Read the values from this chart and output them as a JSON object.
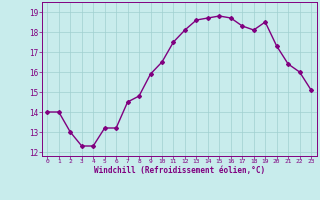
{
  "x": [
    0,
    1,
    2,
    3,
    4,
    5,
    6,
    7,
    8,
    9,
    10,
    11,
    12,
    13,
    14,
    15,
    16,
    17,
    18,
    19,
    20,
    21,
    22,
    23
  ],
  "y": [
    14.0,
    14.0,
    13.0,
    12.3,
    12.3,
    13.2,
    13.2,
    14.5,
    14.8,
    15.9,
    16.5,
    17.5,
    18.1,
    18.6,
    18.7,
    18.8,
    18.7,
    18.3,
    18.1,
    18.5,
    17.3,
    16.4,
    16.0,
    15.1
  ],
  "line_color": "#800080",
  "marker": "D",
  "marker_size": 2.0,
  "line_width": 1.0,
  "bg_color": "#c8ecec",
  "grid_color": "#a0d0d0",
  "xlabel": "Windchill (Refroidissement éolien,°C)",
  "xlabel_color": "#800080",
  "tick_color": "#800080",
  "ylim": [
    11.8,
    19.5
  ],
  "xlim": [
    -0.5,
    23.5
  ],
  "yticks": [
    12,
    13,
    14,
    15,
    16,
    17,
    18,
    19
  ],
  "xticks": [
    0,
    1,
    2,
    3,
    4,
    5,
    6,
    7,
    8,
    9,
    10,
    11,
    12,
    13,
    14,
    15,
    16,
    17,
    18,
    19,
    20,
    21,
    22,
    23
  ],
  "xtick_labels": [
    "0",
    "1",
    "2",
    "3",
    "4",
    "5",
    "6",
    "7",
    "8",
    "9",
    "10",
    "11",
    "12",
    "13",
    "14",
    "15",
    "16",
    "17",
    "18",
    "19",
    "20",
    "21",
    "22",
    "23"
  ]
}
